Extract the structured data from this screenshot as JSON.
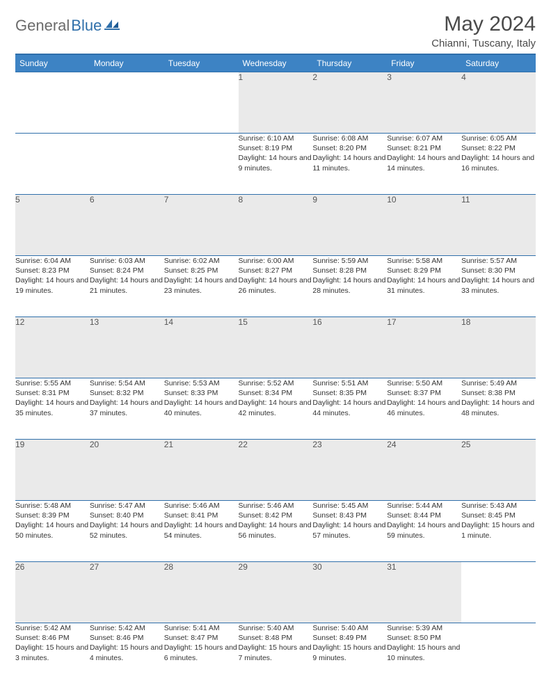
{
  "logo": {
    "part1": "General",
    "part2": "Blue"
  },
  "title": "May 2024",
  "location": "Chianni, Tuscany, Italy",
  "colors": {
    "header_bg": "#3d83c4",
    "header_border": "#2f6faa",
    "daynum_bg": "#eaeaea",
    "text": "#333333"
  },
  "daysOfWeek": [
    "Sunday",
    "Monday",
    "Tuesday",
    "Wednesday",
    "Thursday",
    "Friday",
    "Saturday"
  ],
  "weeks": [
    [
      {
        "empty": true
      },
      {
        "empty": true
      },
      {
        "empty": true
      },
      {
        "day": "1",
        "sunrise": "6:10 AM",
        "sunset": "8:19 PM",
        "daylight": "14 hours and 9 minutes."
      },
      {
        "day": "2",
        "sunrise": "6:08 AM",
        "sunset": "8:20 PM",
        "daylight": "14 hours and 11 minutes."
      },
      {
        "day": "3",
        "sunrise": "6:07 AM",
        "sunset": "8:21 PM",
        "daylight": "14 hours and 14 minutes."
      },
      {
        "day": "4",
        "sunrise": "6:05 AM",
        "sunset": "8:22 PM",
        "daylight": "14 hours and 16 minutes."
      }
    ],
    [
      {
        "day": "5",
        "sunrise": "6:04 AM",
        "sunset": "8:23 PM",
        "daylight": "14 hours and 19 minutes."
      },
      {
        "day": "6",
        "sunrise": "6:03 AM",
        "sunset": "8:24 PM",
        "daylight": "14 hours and 21 minutes."
      },
      {
        "day": "7",
        "sunrise": "6:02 AM",
        "sunset": "8:25 PM",
        "daylight": "14 hours and 23 minutes."
      },
      {
        "day": "8",
        "sunrise": "6:00 AM",
        "sunset": "8:27 PM",
        "daylight": "14 hours and 26 minutes."
      },
      {
        "day": "9",
        "sunrise": "5:59 AM",
        "sunset": "8:28 PM",
        "daylight": "14 hours and 28 minutes."
      },
      {
        "day": "10",
        "sunrise": "5:58 AM",
        "sunset": "8:29 PM",
        "daylight": "14 hours and 31 minutes."
      },
      {
        "day": "11",
        "sunrise": "5:57 AM",
        "sunset": "8:30 PM",
        "daylight": "14 hours and 33 minutes."
      }
    ],
    [
      {
        "day": "12",
        "sunrise": "5:55 AM",
        "sunset": "8:31 PM",
        "daylight": "14 hours and 35 minutes."
      },
      {
        "day": "13",
        "sunrise": "5:54 AM",
        "sunset": "8:32 PM",
        "daylight": "14 hours and 37 minutes."
      },
      {
        "day": "14",
        "sunrise": "5:53 AM",
        "sunset": "8:33 PM",
        "daylight": "14 hours and 40 minutes."
      },
      {
        "day": "15",
        "sunrise": "5:52 AM",
        "sunset": "8:34 PM",
        "daylight": "14 hours and 42 minutes."
      },
      {
        "day": "16",
        "sunrise": "5:51 AM",
        "sunset": "8:35 PM",
        "daylight": "14 hours and 44 minutes."
      },
      {
        "day": "17",
        "sunrise": "5:50 AM",
        "sunset": "8:37 PM",
        "daylight": "14 hours and 46 minutes."
      },
      {
        "day": "18",
        "sunrise": "5:49 AM",
        "sunset": "8:38 PM",
        "daylight": "14 hours and 48 minutes."
      }
    ],
    [
      {
        "day": "19",
        "sunrise": "5:48 AM",
        "sunset": "8:39 PM",
        "daylight": "14 hours and 50 minutes."
      },
      {
        "day": "20",
        "sunrise": "5:47 AM",
        "sunset": "8:40 PM",
        "daylight": "14 hours and 52 minutes."
      },
      {
        "day": "21",
        "sunrise": "5:46 AM",
        "sunset": "8:41 PM",
        "daylight": "14 hours and 54 minutes."
      },
      {
        "day": "22",
        "sunrise": "5:46 AM",
        "sunset": "8:42 PM",
        "daylight": "14 hours and 56 minutes."
      },
      {
        "day": "23",
        "sunrise": "5:45 AM",
        "sunset": "8:43 PM",
        "daylight": "14 hours and 57 minutes."
      },
      {
        "day": "24",
        "sunrise": "5:44 AM",
        "sunset": "8:44 PM",
        "daylight": "14 hours and 59 minutes."
      },
      {
        "day": "25",
        "sunrise": "5:43 AM",
        "sunset": "8:45 PM",
        "daylight": "15 hours and 1 minute."
      }
    ],
    [
      {
        "day": "26",
        "sunrise": "5:42 AM",
        "sunset": "8:46 PM",
        "daylight": "15 hours and 3 minutes."
      },
      {
        "day": "27",
        "sunrise": "5:42 AM",
        "sunset": "8:46 PM",
        "daylight": "15 hours and 4 minutes."
      },
      {
        "day": "28",
        "sunrise": "5:41 AM",
        "sunset": "8:47 PM",
        "daylight": "15 hours and 6 minutes."
      },
      {
        "day": "29",
        "sunrise": "5:40 AM",
        "sunset": "8:48 PM",
        "daylight": "15 hours and 7 minutes."
      },
      {
        "day": "30",
        "sunrise": "5:40 AM",
        "sunset": "8:49 PM",
        "daylight": "15 hours and 9 minutes."
      },
      {
        "day": "31",
        "sunrise": "5:39 AM",
        "sunset": "8:50 PM",
        "daylight": "15 hours and 10 minutes."
      },
      {
        "empty": true
      }
    ]
  ]
}
